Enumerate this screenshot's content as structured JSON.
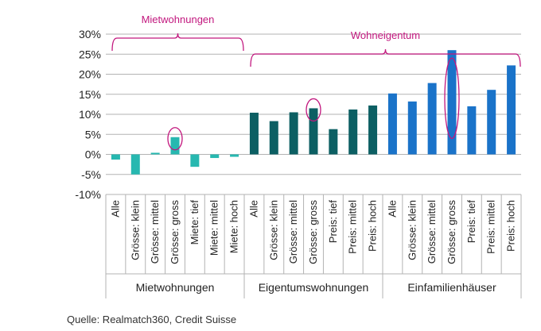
{
  "chart_data": {
    "type": "bar",
    "ylim": [
      -10,
      30
    ],
    "yticks": [
      -10,
      -5,
      0,
      5,
      10,
      15,
      20,
      25,
      30
    ],
    "ytick_suffix": "%",
    "grid": true,
    "categories": [
      "Alle",
      "Grösse: klein",
      "Grösse: mittel",
      "Grösse: gross",
      "Miete: tief",
      "Miete: mittel",
      "Miete: hoch",
      "Alle",
      "Grösse: klein",
      "Grösse: mittel",
      "Grösse: gross",
      "Preis: tief",
      "Preis: mittel",
      "Preis: hoch",
      "Alle",
      "Grösse: klein",
      "Grösse: mittel",
      "Grösse: gross",
      "Preis: tief",
      "Preis: mittel",
      "Preis: hoch"
    ],
    "values": [
      -1.3,
      -5.0,
      0.4,
      4.3,
      -3.1,
      -0.9,
      -0.6,
      10.4,
      8.3,
      10.5,
      11.5,
      6.3,
      11.2,
      12.2,
      15.2,
      13.2,
      17.8,
      26.0,
      12.0,
      16.1,
      22.2
    ],
    "groups": [
      {
        "name": "Mietwohnungen",
        "start": 0,
        "count": 7,
        "color": "#27b8b0"
      },
      {
        "name": "Eigentumswohnungen",
        "start": 7,
        "count": 7,
        "color": "#0c5f63"
      },
      {
        "name": "Einfamilienhäuser",
        "start": 14,
        "count": 7,
        "color": "#1a73c9"
      }
    ],
    "brackets": [
      {
        "label": "Mietwohnungen",
        "from": 0,
        "to": 6
      },
      {
        "label": "Wohneigentum",
        "from": 7,
        "to": 20
      }
    ],
    "highlighted": [
      3,
      10,
      17
    ],
    "annotation_color": "#c2177e"
  },
  "source": "Quelle: Realmatch360, Credit Suisse"
}
